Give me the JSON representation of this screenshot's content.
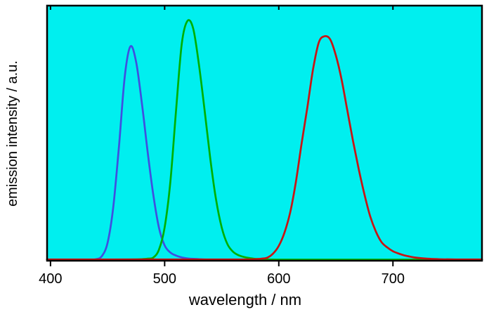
{
  "chart_data": {
    "type": "line",
    "title": "",
    "xlabel": "wavelength / nm",
    "ylabel": "emission intensity / a.u.",
    "xlim": [
      397,
      778
    ],
    "ylim": [
      0,
      1
    ],
    "x_ticks": [
      400,
      500,
      600,
      700
    ],
    "x_tick_labels": [
      "400",
      "500",
      "600",
      "700"
    ],
    "y_ticks": [],
    "grid": false,
    "legend_position": "none",
    "plot_bg": "#00efef",
    "frame_color": "#000000",
    "series": [
      {
        "name": "blue emission band (peak ~470 nm)",
        "color": "#3f4fe0",
        "x": [
          397,
          420,
          435,
          440,
          445,
          450,
          455,
          460,
          465,
          470,
          475,
          480,
          485,
          490,
          495,
          500,
          505,
          510,
          515,
          520,
          530,
          540,
          555,
          580,
          620,
          680,
          778
        ],
        "y": [
          0.004,
          0.004,
          0.004,
          0.006,
          0.018,
          0.07,
          0.21,
          0.45,
          0.72,
          0.84,
          0.78,
          0.62,
          0.43,
          0.26,
          0.13,
          0.06,
          0.032,
          0.02,
          0.013,
          0.009,
          0.006,
          0.004,
          0.003,
          0.003,
          0.003,
          0.003,
          0.003
        ]
      },
      {
        "name": "green emission band (peak ~520 nm)",
        "color": "#00b000",
        "x": [
          397,
          440,
          470,
          480,
          485,
          490,
          495,
          500,
          505,
          510,
          515,
          520,
          525,
          530,
          535,
          540,
          545,
          550,
          555,
          560,
          565,
          570,
          575,
          580,
          590,
          605,
          630,
          680,
          730,
          778
        ],
        "y": [
          0.004,
          0.004,
          0.005,
          0.006,
          0.008,
          0.012,
          0.043,
          0.13,
          0.31,
          0.59,
          0.85,
          0.94,
          0.91,
          0.77,
          0.59,
          0.4,
          0.24,
          0.13,
          0.065,
          0.035,
          0.021,
          0.014,
          0.01,
          0.007,
          0.005,
          0.004,
          0.004,
          0.004,
          0.004,
          0.004
        ]
      },
      {
        "name": "red emission band (peak ~640 nm)",
        "color": "#c81414",
        "x": [
          397,
          450,
          510,
          550,
          570,
          580,
          585,
          590,
          595,
          600,
          605,
          610,
          615,
          620,
          625,
          630,
          635,
          640,
          645,
          650,
          655,
          660,
          665,
          670,
          675,
          680,
          685,
          690,
          695,
          700,
          705,
          710,
          715,
          720,
          730,
          740,
          755,
          778
        ],
        "y": [
          0.005,
          0.005,
          0.005,
          0.005,
          0.005,
          0.006,
          0.008,
          0.012,
          0.028,
          0.058,
          0.11,
          0.19,
          0.31,
          0.46,
          0.6,
          0.75,
          0.855,
          0.88,
          0.868,
          0.805,
          0.71,
          0.59,
          0.47,
          0.36,
          0.26,
          0.175,
          0.115,
          0.073,
          0.052,
          0.037,
          0.028,
          0.021,
          0.016,
          0.012,
          0.008,
          0.006,
          0.005,
          0.005
        ]
      }
    ]
  }
}
